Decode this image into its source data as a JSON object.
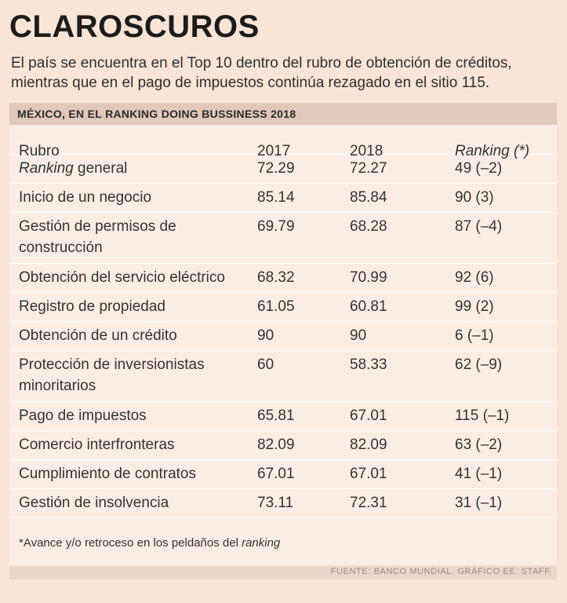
{
  "title": "CLAROSCUROS",
  "subtitle_line1": "El país se encuentra en el Top 10 dentro del rubro de obtención de créditos,",
  "subtitle_line2": "mientras que en el pago de impuestos continúa rezagado en el sitio 115.",
  "chart_data": {
    "type": "table",
    "title": "MÉXICO, EN EL RANKING DOING BUSSINESS 2018",
    "columns": {
      "rubro": "Rubro",
      "y2017": "2017",
      "y2018": "2018",
      "ranking": "Ranking (*)"
    },
    "rows": [
      {
        "rubro": "Ranking general",
        "lines": [
          "Ranking general"
        ],
        "v2017": "72.29",
        "v2018": "72.27",
        "ranking": "49 (–2)"
      },
      {
        "rubro": "Inicio de un negocio",
        "lines": [
          "Inicio de un negocio"
        ],
        "v2017": "85.14",
        "v2018": "85.84",
        "ranking": "90 (3)"
      },
      {
        "rubro": "Gestión de permisos de construcción",
        "lines": [
          "Gestión de permisos de",
          "construcción"
        ],
        "v2017": "69.79",
        "v2018": "68.28",
        "ranking": "87 (–4)"
      },
      {
        "rubro": "Obtención del servicio eléctrico",
        "lines": [
          "Obtención del servicio eléctrico"
        ],
        "v2017": "68.32",
        "v2018": "70.99",
        "ranking": "92 (6)"
      },
      {
        "rubro": "Registro de propiedad",
        "lines": [
          "Registro de propiedad"
        ],
        "v2017": "61.05",
        "v2018": "60.81",
        "ranking": "99 (2)"
      },
      {
        "rubro": "Obtención de un crédito",
        "lines": [
          "Obtención de un crédito"
        ],
        "v2017": "90",
        "v2018": "90",
        "ranking": "6 (–1)"
      },
      {
        "rubro": "Protección de inversionistas minoritarios",
        "lines": [
          "Protección de inversionistas",
          "minoritarios"
        ],
        "v2017": "60",
        "v2018": "58.33",
        "ranking": "62 (–9)"
      },
      {
        "rubro": "Pago de impuestos",
        "lines": [
          "Pago de impuestos"
        ],
        "v2017": "65.81",
        "v2018": "67.01",
        "ranking": "115 (–1)"
      },
      {
        "rubro": "Comercio interfronteras",
        "lines": [
          "Comercio interfronteras"
        ],
        "v2017": "82.09",
        "v2018": "82.09",
        "ranking": "63 (–2)"
      },
      {
        "rubro": "Cumplimiento de contratos",
        "lines": [
          "Cumplimiento de contratos"
        ],
        "v2017": "67.01",
        "v2018": "67.01",
        "ranking": "41 (–1)"
      },
      {
        "rubro": "Gestión de insolvencia",
        "lines": [
          "Gestión de insolvencia"
        ],
        "v2017": "73.11",
        "v2018": "72.31",
        "ranking": "31 (–1)"
      }
    ],
    "footnote": "*Avance y/o retroceso en los peldaños del ranking",
    "source": "FUENTE: BANCO MUNDIAL. GRÁFICO EE: STAFF."
  }
}
